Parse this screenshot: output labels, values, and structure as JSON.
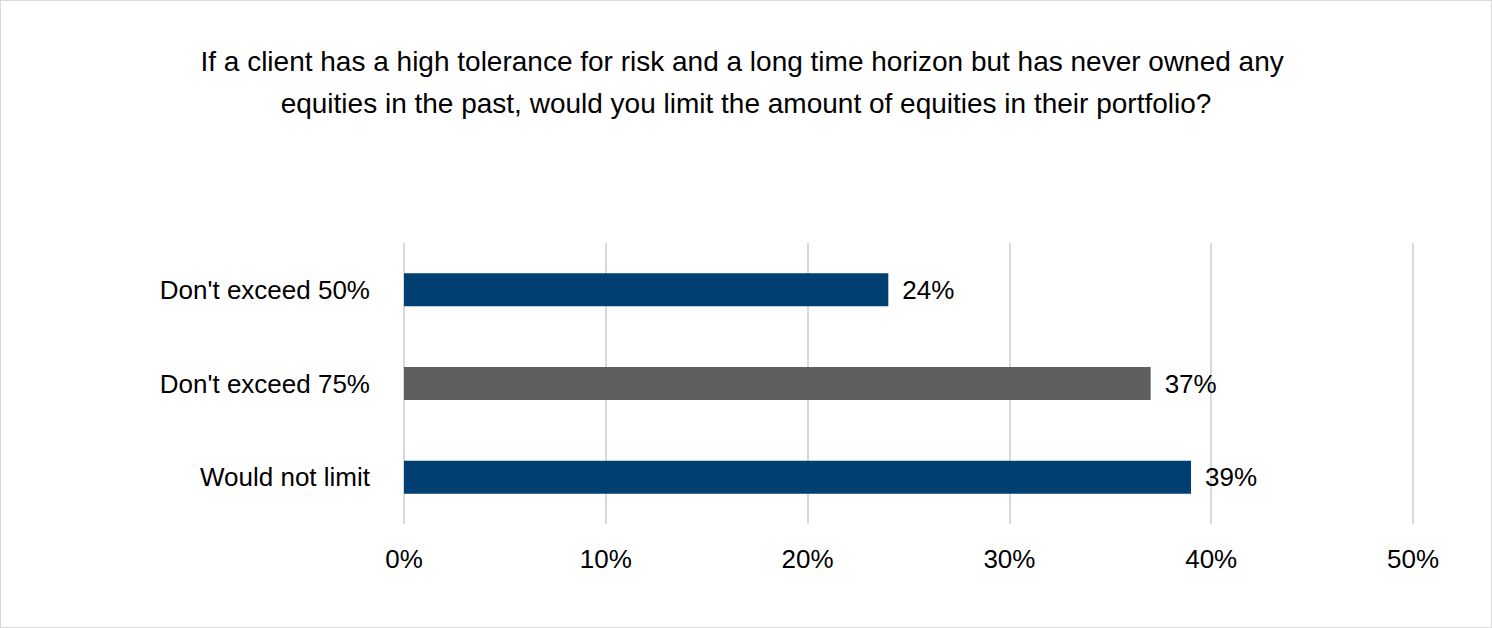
{
  "chart_data": {
    "type": "bar",
    "orientation": "horizontal",
    "title": "If a client has a high tolerance for risk and a long time horizon but has never owned any equities in the past, would you limit the amount of equities in their portfolio?",
    "categories": [
      "Don't exceed 50%",
      "Don't exceed 75%",
      "Would not limit"
    ],
    "values": [
      24,
      37,
      39
    ],
    "value_labels": [
      "24%",
      "37%",
      "39%"
    ],
    "colors": [
      "#003f72",
      "#5f5f5f",
      "#003f72"
    ],
    "xlim": [
      0,
      50
    ],
    "xticks": [
      {
        "value": 0,
        "label": "0%"
      },
      {
        "value": 10,
        "label": "10%"
      },
      {
        "value": 20,
        "label": "20%"
      },
      {
        "value": 30,
        "label": "30%"
      },
      {
        "value": 40,
        "label": "40%"
      },
      {
        "value": 50,
        "label": "50%"
      }
    ],
    "grid": true,
    "data_labels": true
  }
}
